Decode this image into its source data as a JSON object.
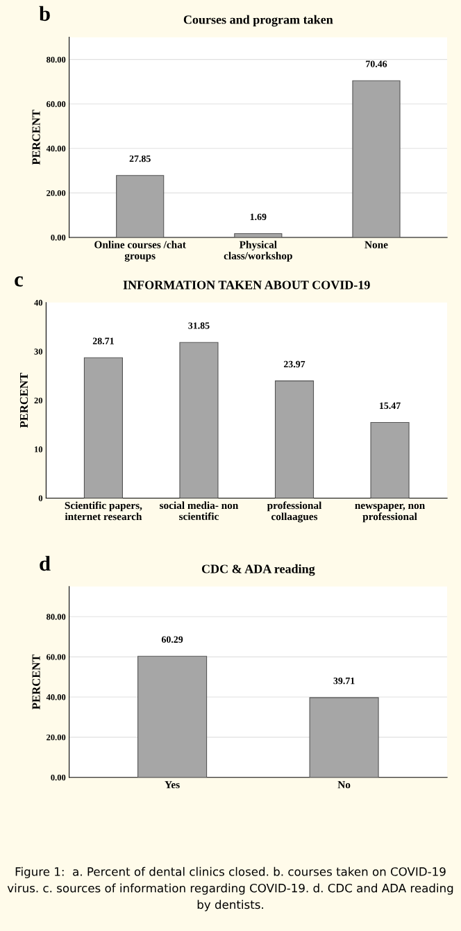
{
  "chart_data": [
    {
      "type": "bar",
      "title": "Courses and program taken",
      "ylabel": "PERCENT",
      "annotations": [
        "b"
      ],
      "categories": [
        "Online courses /chat\ngroups",
        "Physical\nclass/workshop",
        "None"
      ],
      "values": [
        27.85,
        1.69,
        70.46
      ],
      "color": "#a6a6a6",
      "data_labels": true,
      "grid": "y",
      "ylim": [
        0,
        90
      ],
      "yticks": [
        {
          "value": 0,
          "label": "0.00"
        },
        {
          "value": 20,
          "label": "20.00"
        },
        {
          "value": 40,
          "label": "40.00"
        },
        {
          "value": 60,
          "label": "60.00"
        },
        {
          "value": 80,
          "label": "80.00"
        }
      ]
    },
    {
      "type": "bar",
      "title": "INFORMATION TAKEN ABOUT COVID-19",
      "ylabel": "PERCENT",
      "annotations": [
        "c"
      ],
      "categories": [
        "Scientific papers,\ninternet research",
        "social media- non\nscientific",
        "professional\ncollaagues",
        "newspaper, non\nprofessional"
      ],
      "values": [
        28.71,
        31.85,
        23.97,
        15.47
      ],
      "color": "#a6a6a6",
      "data_labels": true,
      "ylim": [
        0,
        40
      ],
      "yticks": [
        0,
        10,
        20,
        30,
        40
      ]
    },
    {
      "type": "bar",
      "title": "CDC & ADA reading",
      "ylabel": "PERCENT",
      "annotations": [
        "d",
        "Figure 1:  a. Percent of dental clinics closed. b. courses taken on COVID-19 virus. c. sources of information regarding COVID-19. d. CDC and ADA reading by dentists."
      ],
      "categories": [
        "Yes",
        "No"
      ],
      "values": [
        60.29,
        39.71
      ],
      "color": "#a6a6a6",
      "data_labels": true,
      "grid": "y",
      "ylim": [
        0,
        95
      ],
      "yticks": [
        {
          "value": 0,
          "label": "0.00"
        },
        {
          "value": 20,
          "label": "20.00"
        },
        {
          "value": 40,
          "label": "40.00"
        },
        {
          "value": 60,
          "label": "60.00"
        },
        {
          "value": 80,
          "label": "80.00"
        }
      ]
    }
  ]
}
